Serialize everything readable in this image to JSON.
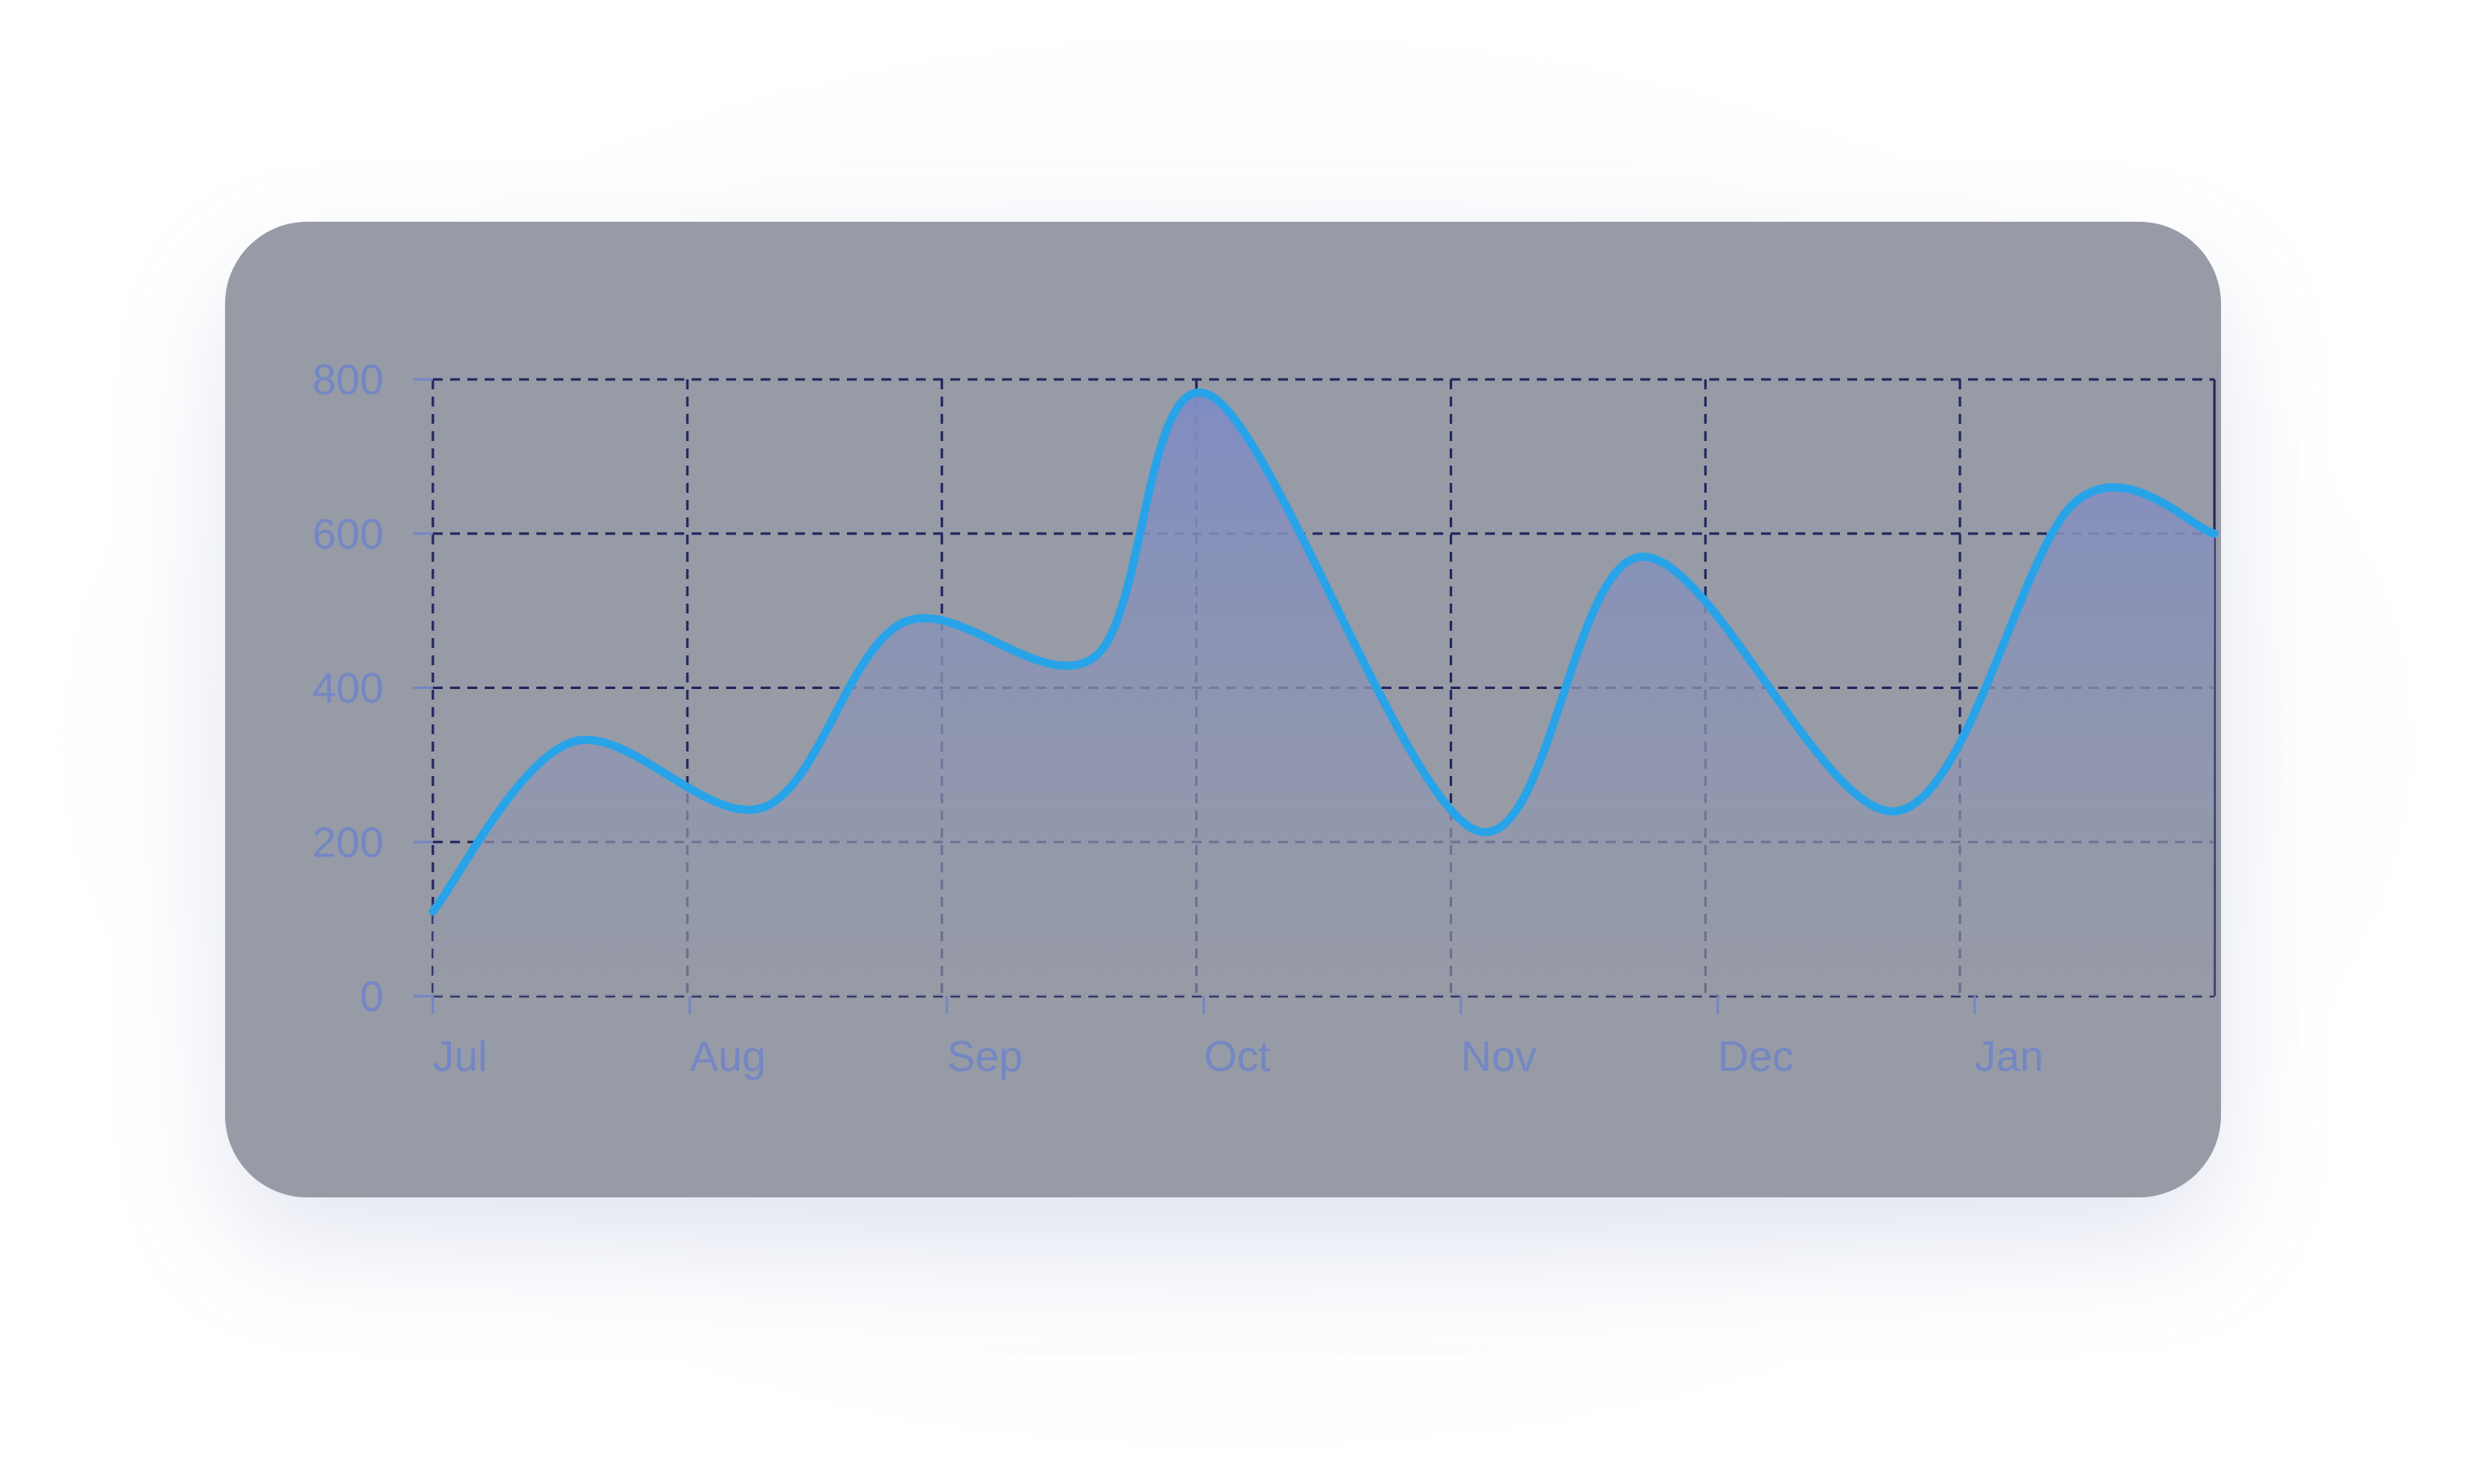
{
  "chart_data": {
    "type": "area",
    "title": "",
    "xlabel": "",
    "ylabel": "",
    "x_ticks": [
      "Jul",
      "Aug",
      "Sep",
      "Oct",
      "Nov",
      "Dec",
      "Jan"
    ],
    "y_ticks": [
      "0",
      "200",
      "400",
      "600",
      "800"
    ],
    "ylim": [
      0,
      800
    ],
    "xlim": [
      0,
      7
    ],
    "grid": true,
    "series": [
      {
        "x": [
          0,
          0.55,
          1.3,
          1.85,
          2.6,
          3.05,
          4.1,
          4.75,
          5.75,
          6.45,
          7.0
        ],
        "values": [
          110,
          330,
          245,
          485,
          440,
          780,
          215,
          570,
          240,
          640,
          600
        ]
      }
    ],
    "colors": {
      "line": "#29a3e8",
      "fill_top": "#7f8cc4",
      "grid": "#24275e",
      "tick_label": "#7487c4",
      "card": "#979ba6"
    }
  }
}
